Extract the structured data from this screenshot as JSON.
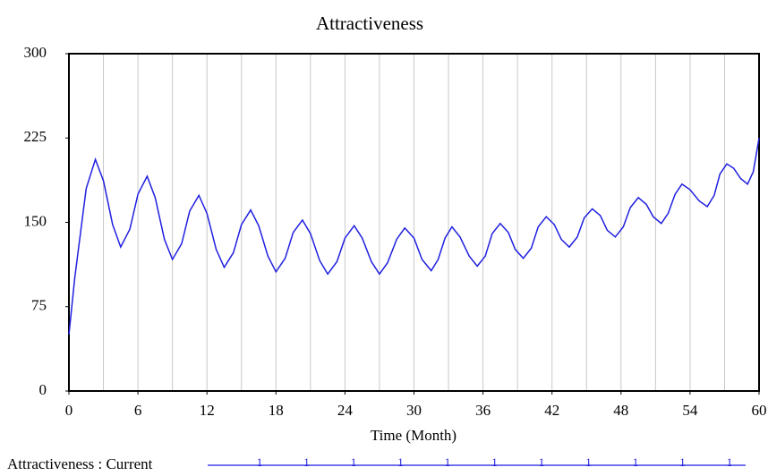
{
  "chart_data": {
    "type": "line",
    "title": "Attractiveness",
    "x_label": "Time (Month)",
    "x": [
      0,
      0.5,
      1,
      1.5,
      2.3,
      3.0,
      3.8,
      4.5,
      5.3,
      6.0,
      6.8,
      7.5,
      8.3,
      9,
      9.8,
      10.5,
      11.3,
      12.0,
      12.8,
      13.5,
      14.3,
      15.0,
      15.8,
      16.5,
      17.3,
      18,
      18.8,
      19.5,
      20.3,
      21.0,
      21.8,
      22.5,
      23.3,
      24.0,
      24.8,
      25.5,
      26.3,
      27,
      27.7,
      28.5,
      29.2,
      30.0,
      30.7,
      31.5,
      32.1,
      32.7,
      33.3,
      34.0,
      34.8,
      35.5,
      36.2,
      36.8,
      37.5,
      38.2,
      38.8,
      39.5,
      40.2,
      40.8,
      41.5,
      42.2,
      42.8,
      43.5,
      44.2,
      44.8,
      45.5,
      46.2,
      46.8,
      47.5,
      48.2,
      48.8,
      49.5,
      50.2,
      50.8,
      51.5,
      52.1,
      52.7,
      53.3,
      54.0,
      54.8,
      55.5,
      56.1,
      56.6,
      57.2,
      57.8,
      58.4,
      59,
      59.5,
      60
    ],
    "series": [
      {
        "name": "Attractiveness : Current",
        "marker_label": "1",
        "color": "#1f1fe0",
        "values": [
          50,
          100,
          140,
          180,
          206,
          187,
          148,
          128,
          144,
          175,
          191,
          172,
          135,
          117,
          131,
          160,
          174,
          158,
          126,
          110,
          123,
          148,
          161,
          147,
          120,
          106,
          118,
          141,
          152,
          140,
          116,
          104,
          115,
          136,
          147,
          136,
          115,
          104,
          114,
          135,
          145,
          136,
          117,
          107,
          117,
          136,
          146,
          137,
          120,
          111,
          120,
          140,
          149,
          141,
          126,
          118,
          127,
          146,
          155,
          148,
          135,
          128,
          137,
          154,
          162,
          156,
          143,
          137,
          146,
          163,
          172,
          166,
          155,
          149,
          158,
          175,
          184,
          179,
          169,
          164,
          174,
          193,
          202,
          198,
          189,
          184,
          195,
          225
        ]
      }
    ],
    "xlim": [
      0,
      60
    ],
    "xticks": [
      0,
      6,
      12,
      18,
      24,
      30,
      36,
      42,
      48,
      54,
      60
    ],
    "xgrid": [
      3,
      6,
      9,
      12,
      15,
      18,
      21,
      24,
      27,
      30,
      33,
      36,
      39,
      42,
      45,
      48,
      51,
      54,
      57
    ],
    "ylim": [
      0,
      300
    ],
    "yticks": [
      0,
      75,
      150,
      225,
      300
    ],
    "grid": true
  }
}
